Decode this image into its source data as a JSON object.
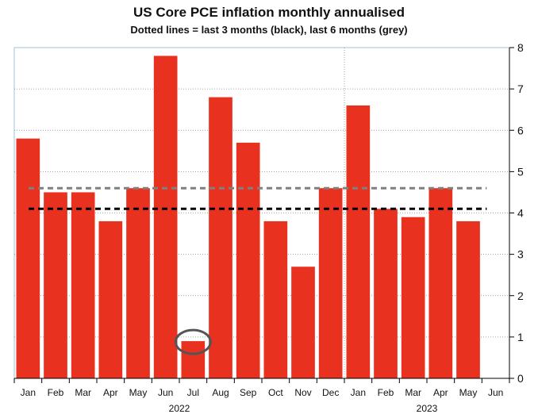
{
  "chart_data": {
    "type": "bar",
    "title": "US Core PCE inflation monthly annualised",
    "subtitle": "Dotted lines = last 3 months (black), last 6 months (grey)",
    "categories": [
      "Jan",
      "Feb",
      "Mar",
      "Apr",
      "May",
      "Jun",
      "Jul",
      "Aug",
      "Sep",
      "Oct",
      "Nov",
      "Dec",
      "Jan",
      "Feb",
      "Mar",
      "Apr",
      "May",
      "Jun"
    ],
    "values": [
      5.8,
      4.5,
      4.5,
      3.8,
      4.6,
      7.8,
      0.9,
      6.8,
      5.7,
      3.8,
      2.7,
      4.6,
      6.6,
      4.1,
      3.9,
      4.6,
      3.8,
      null
    ],
    "years": [
      {
        "label": "2022",
        "start_index": 0,
        "end_index": 11
      },
      {
        "label": "2023",
        "start_index": 12,
        "end_index": 17
      }
    ],
    "ylim": [
      0,
      8
    ],
    "yticks": [
      0,
      1,
      2,
      3,
      4,
      5,
      6,
      7,
      8
    ],
    "y_axis_side": "right",
    "xlabel": "",
    "ylabel": "",
    "grid": "dotted horizontal",
    "reference_lines": [
      {
        "name": "last 6 months",
        "value": 4.6,
        "color": "#808080",
        "from_index": 0,
        "to_index": 16
      },
      {
        "name": "last 3 months",
        "value": 4.1,
        "color": "#000000",
        "from_index": 0,
        "to_index": 16
      }
    ],
    "highlight": {
      "index": 6,
      "shape": "ellipse",
      "color": "#555555"
    },
    "bar_color": "#e8311e"
  }
}
